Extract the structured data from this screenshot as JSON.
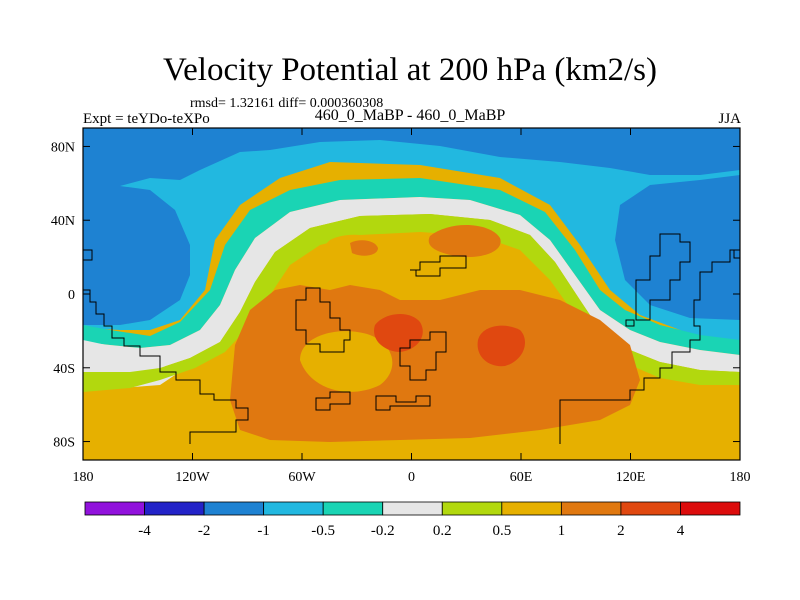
{
  "chart_data": {
    "type": "filled-contour-map",
    "title": "Velocity Potential at 200 hPa (km2/s)",
    "stats_text": "rmsd= 1.32161 diff= 0.000360308",
    "left_label": "Expt = teYDo-teXPo",
    "center_label": "460_0_MaBP - 460_0_MaBP",
    "right_label": "JJA",
    "x_ticks": [
      "180",
      "120W",
      "60W",
      "0",
      "60E",
      "120E",
      "180"
    ],
    "x_tick_values": [
      -180,
      -120,
      -60,
      0,
      60,
      120,
      180
    ],
    "y_ticks": [
      "80N",
      "40N",
      "0",
      "40S",
      "80S"
    ],
    "y_tick_values": [
      80,
      40,
      0,
      -40,
      -80
    ],
    "xlim": [
      -180,
      180
    ],
    "ylim": [
      -90,
      90
    ],
    "colorbar_levels": [
      "-4",
      "-2",
      "-1",
      "-0.5",
      "-0.2",
      "0.2",
      "0.5",
      "1",
      "2",
      "4"
    ],
    "colorbar_colors": [
      "#9112dc",
      "#2323c8",
      "#1e82d2",
      "#22b8e0",
      "#1ad4b4",
      "#e6e6e6",
      "#b2d80e",
      "#e6b000",
      "#e07810",
      "#e04810",
      "#dc0c0c"
    ]
  }
}
